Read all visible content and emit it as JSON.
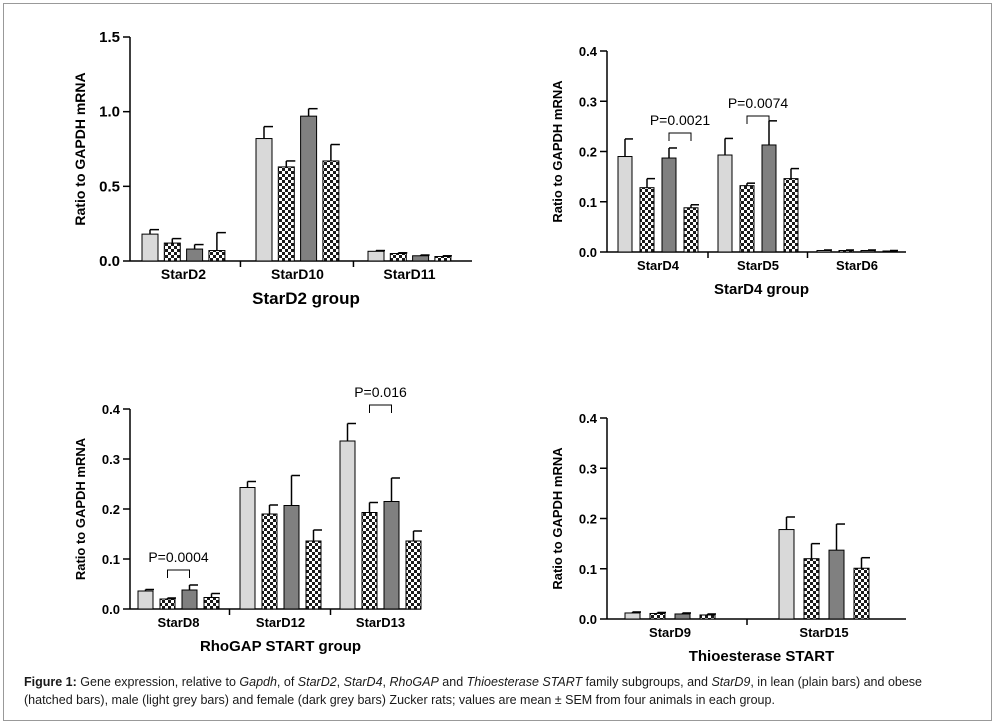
{
  "caption": {
    "label": "Figure 1:",
    "parts": [
      {
        "t": " Gene expression, relative to ",
        "i": false
      },
      {
        "t": "Gapdh",
        "i": true
      },
      {
        "t": ", of ",
        "i": false
      },
      {
        "t": "StarD2",
        "i": true
      },
      {
        "t": ", ",
        "i": false
      },
      {
        "t": "StarD4",
        "i": true
      },
      {
        "t": ", ",
        "i": false
      },
      {
        "t": "RhoGAP",
        "i": true
      },
      {
        "t": " and ",
        "i": false
      },
      {
        "t": "Thioesterase START",
        "i": true
      },
      {
        "t": "  family subgroups, and ",
        "i": false
      },
      {
        "t": "StarD9",
        "i": true
      },
      {
        "t": ", in lean (plain bars) and obese (hatched bars), male (light grey bars) and female (dark grey bars) Zucker rats; values are mean ± SEM from four animals in each group.",
        "i": false
      }
    ]
  },
  "colors": {
    "light": "#d9d9d9",
    "dark": "#808080",
    "axis": "#000000"
  },
  "chart_data": [
    {
      "type": "bar",
      "title": "StarD2 group",
      "ylabel": "Ratio to GAPDH mRNA",
      "ylim": [
        0,
        1.5
      ],
      "yticks": [
        "0.0",
        "0.5",
        "1.0",
        "1.5"
      ],
      "categories": [
        "StarD2",
        "StarD10",
        "StarD11"
      ],
      "series": [
        {
          "fill": "light",
          "hatched": false,
          "values": [
            0.18,
            0.82,
            0.065
          ],
          "errors": [
            0.03,
            0.08,
            0.005
          ]
        },
        {
          "fill": "light",
          "hatched": true,
          "values": [
            0.12,
            0.63,
            0.05
          ],
          "errors": [
            0.03,
            0.04,
            0.005
          ]
        },
        {
          "fill": "dark",
          "hatched": false,
          "values": [
            0.08,
            0.97,
            0.035
          ],
          "errors": [
            0.03,
            0.05,
            0.005
          ]
        },
        {
          "fill": "light",
          "hatched": true,
          "values": [
            0.07,
            0.67,
            0.03
          ],
          "errors": [
            0.12,
            0.11,
            0.005
          ]
        }
      ],
      "annotations": []
    },
    {
      "type": "bar",
      "title": "StarD4 group",
      "ylabel": "Ratio to GAPDH mRNA",
      "ylim": [
        0,
        0.4
      ],
      "yticks": [
        "0.0",
        "0.1",
        "0.2",
        "0.3",
        "0.4"
      ],
      "categories": [
        "StarD4",
        "StarD5",
        "StarD6"
      ],
      "series": [
        {
          "fill": "light",
          "hatched": false,
          "values": [
            0.19,
            0.193,
            0.003
          ],
          "errors": [
            0.035,
            0.033,
            0.001
          ]
        },
        {
          "fill": "light",
          "hatched": true,
          "values": [
            0.128,
            0.132,
            0.003
          ],
          "errors": [
            0.018,
            0.005,
            0.001
          ]
        },
        {
          "fill": "dark",
          "hatched": false,
          "values": [
            0.187,
            0.213,
            0.003
          ],
          "errors": [
            0.02,
            0.048,
            0.001
          ]
        },
        {
          "fill": "light",
          "hatched": true,
          "values": [
            0.088,
            0.146,
            0.002
          ],
          "errors": [
            0.006,
            0.02,
            0.001
          ]
        }
      ],
      "annotations": [
        {
          "text": "P=0.0021",
          "category": 1,
          "bars": [
            2,
            3
          ]
        },
        {
          "text": "P=0.0074",
          "category": 2,
          "bars": [
            1,
            2
          ]
        }
      ]
    },
    {
      "type": "bar",
      "title": "RhoGAP START group",
      "ylabel": "Ratio to GAPDH mRNA",
      "ylim": [
        0,
        0.4
      ],
      "yticks": [
        "0.0",
        "0.1",
        "0.2",
        "0.3",
        "0.4"
      ],
      "categories": [
        "StarD8",
        "StarD12",
        "StarD13"
      ],
      "series": [
        {
          "fill": "light",
          "hatched": false,
          "values": [
            0.036,
            0.243,
            0.336
          ],
          "errors": [
            0.003,
            0.012,
            0.035
          ]
        },
        {
          "fill": "light",
          "hatched": true,
          "values": [
            0.02,
            0.19,
            0.193
          ],
          "errors": [
            0.002,
            0.018,
            0.02
          ]
        },
        {
          "fill": "dark",
          "hatched": false,
          "values": [
            0.038,
            0.207,
            0.215
          ],
          "errors": [
            0.01,
            0.06,
            0.047
          ]
        },
        {
          "fill": "light",
          "hatched": true,
          "values": [
            0.023,
            0.136,
            0.136
          ],
          "errors": [
            0.008,
            0.022,
            0.02
          ]
        }
      ],
      "annotations": [
        {
          "text": "P=0.0004",
          "category": 1,
          "bars": [
            1,
            2
          ]
        },
        {
          "text": "P=0.016",
          "category": 3,
          "bars": [
            1,
            2
          ]
        }
      ]
    },
    {
      "type": "bar",
      "title": "Thioesterase START",
      "ylabel": "Ratio to GAPDH mRNA",
      "ylim": [
        0,
        0.4
      ],
      "yticks": [
        "0.0",
        "0.1",
        "0.2",
        "0.3",
        "0.4"
      ],
      "categories": [
        "StarD9",
        "StarD15"
      ],
      "series": [
        {
          "fill": "light",
          "hatched": false,
          "values": [
            0.012,
            0.178
          ],
          "errors": [
            0.002,
            0.025
          ]
        },
        {
          "fill": "light",
          "hatched": true,
          "values": [
            0.011,
            0.12
          ],
          "errors": [
            0.002,
            0.03
          ]
        },
        {
          "fill": "dark",
          "hatched": false,
          "values": [
            0.01,
            0.137
          ],
          "errors": [
            0.002,
            0.052
          ]
        },
        {
          "fill": "light",
          "hatched": true,
          "values": [
            0.008,
            0.101
          ],
          "errors": [
            0.002,
            0.021
          ]
        }
      ],
      "annotations": []
    }
  ]
}
